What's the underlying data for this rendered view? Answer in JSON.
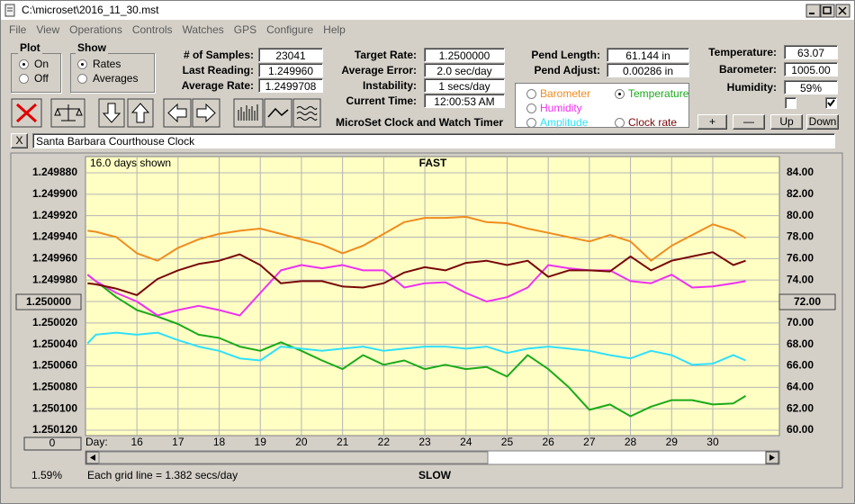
{
  "window": {
    "title": "C:\\microset\\2016_11_30.mst",
    "menu": [
      "File",
      "View",
      "Operations",
      "Controls",
      "Watches",
      "GPS",
      "Configure",
      "Help"
    ]
  },
  "controls": {
    "plot": {
      "label": "Plot",
      "options": [
        "On",
        "Off"
      ],
      "selected": 0
    },
    "show": {
      "label": "Show",
      "options": [
        "Rates",
        "Averages"
      ],
      "selected": 0
    },
    "fields": [
      {
        "label": "# of Samples:",
        "value": "23041"
      },
      {
        "label": "Last Reading:",
        "value": "1.249960"
      },
      {
        "label": "Average Rate:",
        "value": "1.2499708"
      },
      {
        "label": "Target Rate:",
        "value": "1.2500000"
      },
      {
        "label": "Average Error:",
        "value": "2.0 sec/day"
      },
      {
        "label": "Instability:",
        "value": "1 secs/day"
      },
      {
        "label": "Current Time:",
        "value": "12:00:53 AM"
      },
      {
        "label": "Pend Length:",
        "value": "61.144 in"
      },
      {
        "label": "Pend Adjust:",
        "value": "0.00286 in"
      },
      {
        "label": "Temperature:",
        "value": "63.07"
      },
      {
        "label": "Barometer:",
        "value": "1005.00"
      },
      {
        "label": "Humidity:",
        "value": "59%"
      }
    ],
    "app_name": "MicroSet Clock and Watch Timer",
    "buttons": [
      "+",
      "—",
      "Up",
      "Down"
    ],
    "checkboxes": [
      false,
      true
    ]
  },
  "clock_name": {
    "button": "X",
    "text": "Santa Barbara Courthouse Clock"
  },
  "chart_data": {
    "type": "line",
    "days_shown": "16.0 days shown",
    "top_label": "FAST",
    "bottom_label": "SLOW",
    "x_label": "Day:",
    "grid_note": "Each grid line = 1.382 secs/day",
    "status": "1.59%",
    "scroll_button": "0",
    "x": [
      14.8,
      15,
      15.5,
      16,
      16.5,
      17,
      17.5,
      18,
      18.5,
      19,
      19.5,
      20,
      20.5,
      21,
      21.5,
      22,
      22.5,
      23,
      23.5,
      24,
      24.5,
      25,
      25.5,
      26,
      26.5,
      27,
      27.5,
      28,
      28.5,
      29,
      29.5,
      30,
      30.5,
      30.8
    ],
    "xlim": [
      14.75,
      31.62
    ],
    "xticks": [
      16,
      17,
      18,
      19,
      20,
      21,
      22,
      23,
      24,
      25,
      26,
      27,
      28,
      29,
      30
    ],
    "ylim": [
      1.25012,
      1.24988
    ],
    "yticks": [
      {
        "value": 1.24988,
        "label": "1.249880"
      },
      {
        "value": 1.2499,
        "label": "1.249900"
      },
      {
        "value": 1.24992,
        "label": "1.249920"
      },
      {
        "value": 1.24994,
        "label": "1.249940"
      },
      {
        "value": 1.24996,
        "label": "1.249960"
      },
      {
        "value": 1.24998,
        "label": "1.249980"
      },
      {
        "value": 1.25,
        "label": "1.250000"
      },
      {
        "value": 1.25002,
        "label": "1.250020"
      },
      {
        "value": 1.25004,
        "label": "1.250040"
      },
      {
        "value": 1.25006,
        "label": "1.250060"
      },
      {
        "value": 1.25008,
        "label": "1.250080"
      },
      {
        "value": 1.2501,
        "label": "1.250100"
      },
      {
        "value": 1.25012,
        "label": "1.250120"
      }
    ],
    "y2lim": [
      60,
      84
    ],
    "y2ticks": [
      {
        "value": 84,
        "label": "84.00"
      },
      {
        "value": 82,
        "label": "82.00"
      },
      {
        "value": 80,
        "label": "80.00"
      },
      {
        "value": 78,
        "label": "78.00"
      },
      {
        "value": 76,
        "label": "76.00"
      },
      {
        "value": 74,
        "label": "74.00"
      },
      {
        "value": 72,
        "label": "72.00"
      },
      {
        "value": 70,
        "label": "70.00"
      },
      {
        "value": 68,
        "label": "68.00"
      },
      {
        "value": 66,
        "label": "66.00"
      },
      {
        "value": 64,
        "label": "64.00"
      },
      {
        "value": 62,
        "label": "62.00"
      },
      {
        "value": 60,
        "label": "60.00"
      }
    ],
    "grid": true,
    "series": [
      {
        "name": "Barometer",
        "color": "#f08c1e",
        "axis": "y2",
        "selected": false,
        "values": [
          78.6,
          78.5,
          78.0,
          76.5,
          75.8,
          77.0,
          77.8,
          78.3,
          78.6,
          78.8,
          78.3,
          77.8,
          77.3,
          76.5,
          77.2,
          78.3,
          79.4,
          79.8,
          79.8,
          79.9,
          79.4,
          79.3,
          78.8,
          78.4,
          78.0,
          77.6,
          78.2,
          77.6,
          75.8,
          77.2,
          78.2,
          79.2,
          78.6,
          77.9
        ]
      },
      {
        "name": "Temperature",
        "color": "#1aaa1a",
        "axis": "y2",
        "selected": true,
        "values": [
          74.5,
          73.9,
          72.4,
          71.2,
          70.6,
          69.9,
          68.9,
          68.6,
          67.8,
          67.4,
          68.2,
          67.4,
          66.5,
          65.7,
          67.0,
          66.1,
          66.5,
          65.7,
          66.1,
          65.7,
          65.9,
          65.0,
          67.0,
          65.7,
          64.0,
          61.9,
          62.4,
          61.3,
          62.2,
          62.8,
          62.8,
          62.4,
          62.5,
          63.2
        ]
      },
      {
        "name": "Humidity",
        "color": "#f030f0",
        "axis": "y2",
        "selected": false,
        "values": [
          74.5,
          73.9,
          72.8,
          72.0,
          70.7,
          71.2,
          71.6,
          71.2,
          70.7,
          72.8,
          74.9,
          75.4,
          75.1,
          75.4,
          74.9,
          74.9,
          73.3,
          73.7,
          73.8,
          72.8,
          72.0,
          72.4,
          73.3,
          75.4,
          75.1,
          74.9,
          74.9,
          73.9,
          73.7,
          74.5,
          73.3,
          73.4,
          73.7,
          73.9
        ]
      },
      {
        "name": "Amplitude",
        "color": "#30e0f8",
        "axis": "y2",
        "selected": false,
        "values": [
          68.1,
          68.9,
          69.1,
          68.9,
          69.1,
          68.4,
          67.8,
          67.4,
          66.7,
          66.5,
          67.8,
          67.6,
          67.4,
          67.6,
          67.8,
          67.4,
          67.6,
          67.8,
          67.8,
          67.6,
          67.8,
          67.2,
          67.6,
          67.8,
          67.6,
          67.4,
          67.0,
          66.7,
          67.4,
          67.0,
          66.1,
          66.2,
          67.0,
          66.5
        ]
      },
      {
        "name": "Clock rate",
        "color": "#780808",
        "axis": "y",
        "selected": false,
        "values": [
          1.249983,
          1.249984,
          1.249988,
          1.249994,
          1.249979,
          1.249971,
          1.249965,
          1.249962,
          1.249956,
          1.249966,
          1.249983,
          1.249981,
          1.249981,
          1.249986,
          1.249987,
          1.249983,
          1.249973,
          1.249968,
          1.249971,
          1.249964,
          1.249962,
          1.249966,
          1.249962,
          1.249977,
          1.249971,
          1.249971,
          1.249972,
          1.249958,
          1.249971,
          1.249962,
          1.249958,
          1.249954,
          1.249966,
          1.249962
        ]
      }
    ]
  }
}
